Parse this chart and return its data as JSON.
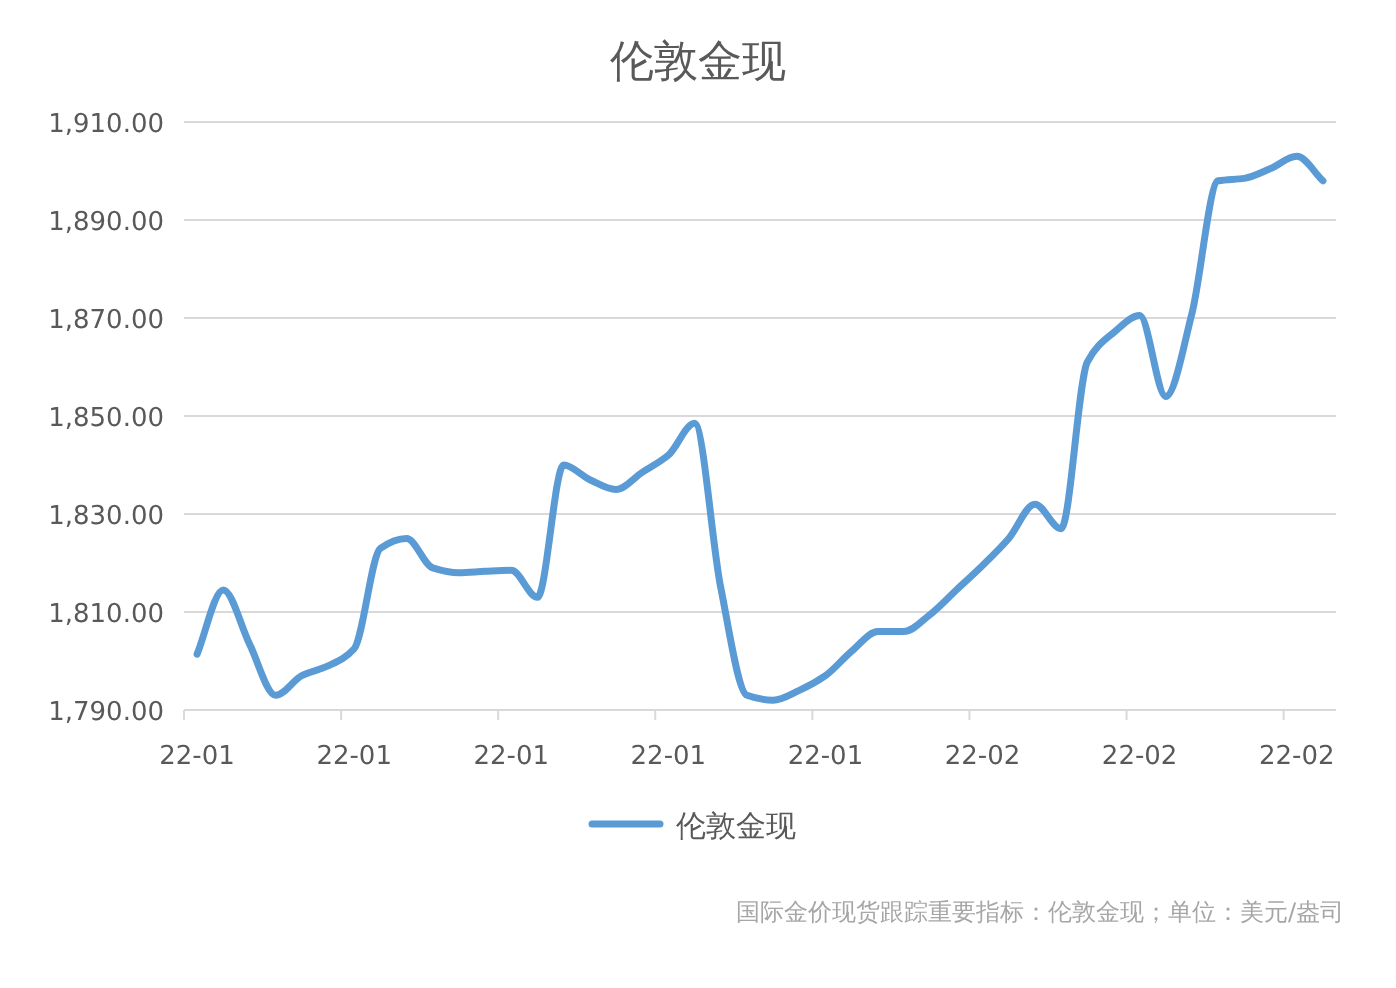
{
  "chart_data": {
    "type": "line",
    "title": "伦敦金现",
    "categories": [
      "22-01",
      null,
      null,
      null,
      null,
      null,
      "22-01",
      null,
      null,
      null,
      null,
      null,
      "22-01",
      null,
      null,
      null,
      null,
      null,
      "22-01",
      null,
      null,
      null,
      null,
      null,
      "22-01",
      null,
      null,
      null,
      null,
      null,
      "22-02",
      null,
      null,
      null,
      null,
      null,
      "22-02",
      null,
      null,
      null,
      null,
      null,
      "22-02",
      null
    ],
    "series": [
      {
        "name": "伦敦金现",
        "color": "#5b9bd5",
        "values": [
          1801.4,
          1814.5,
          1803.5,
          1793,
          1797,
          1799,
          1802.5,
          1823,
          1825,
          1819,
          1818,
          1818.3,
          1818.5,
          1813,
          1840,
          1837,
          1835,
          1838.5,
          1842,
          1848.5,
          1815,
          1793,
          1792,
          1794,
          1797,
          1802,
          1806,
          1806,
          1809.5,
          1814.5,
          1819.5,
          1825,
          1832,
          1827,
          1861,
          1867,
          1870.5,
          1854,
          1871,
          1898,
          1898.5,
          1900.5,
          1903,
          1898
        ]
      }
    ],
    "ylim": [
      1790,
      1910
    ],
    "yticks": [
      {
        "value": 1790,
        "label": "1,790.00"
      },
      {
        "value": 1810,
        "label": "1,810.00"
      },
      {
        "value": 1830,
        "label": "1,830.00"
      },
      {
        "value": 1850,
        "label": "1,850.00"
      },
      {
        "value": 1870,
        "label": "1,870.00"
      },
      {
        "value": 1890,
        "label": "1,890.00"
      },
      {
        "value": 1910,
        "label": "1,910.00"
      }
    ],
    "grid": "y",
    "legend": "bottom",
    "marker": "none",
    "line_style": "solid",
    "annotations": [
      "国际金价现货跟踪重要指标：伦敦金现；单位：美元/盎司"
    ]
  }
}
